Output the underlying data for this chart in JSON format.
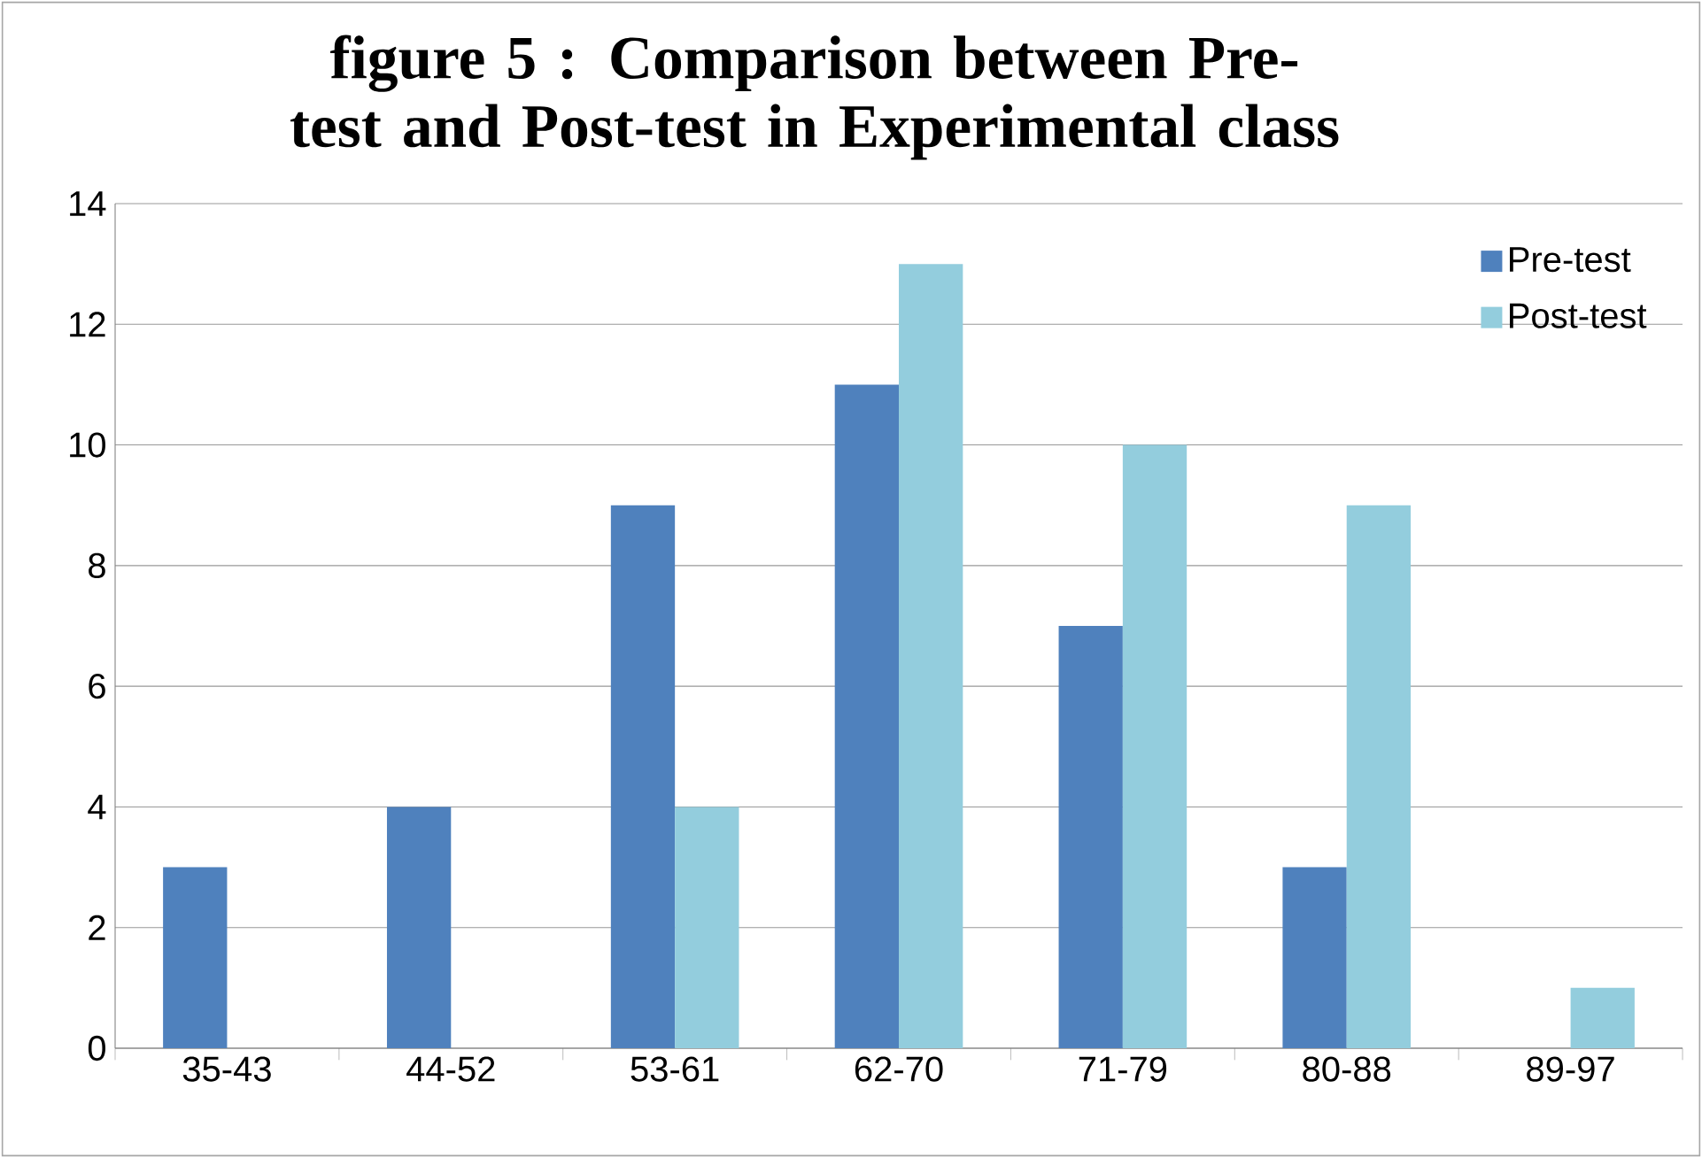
{
  "chart_data": {
    "type": "bar",
    "title": "figure 5 : Comparison between Pre-test and Post-test in Experimental class",
    "categories": [
      "35-43",
      "44-52",
      "53-61",
      "62-70",
      "71-79",
      "80-88",
      "89-97"
    ],
    "series": [
      {
        "name": "Pre-test",
        "color": "#4f81bd",
        "values": [
          3,
          4,
          9,
          11,
          7,
          3,
          0
        ]
      },
      {
        "name": "Post-test",
        "color": "#93cddd",
        "values": [
          0,
          0,
          4,
          13,
          10,
          9,
          1
        ]
      }
    ],
    "ylim": [
      0,
      14
    ],
    "yticks": [
      0,
      2,
      4,
      6,
      8,
      10,
      12,
      14
    ],
    "grid": "y",
    "legend": "top right"
  }
}
